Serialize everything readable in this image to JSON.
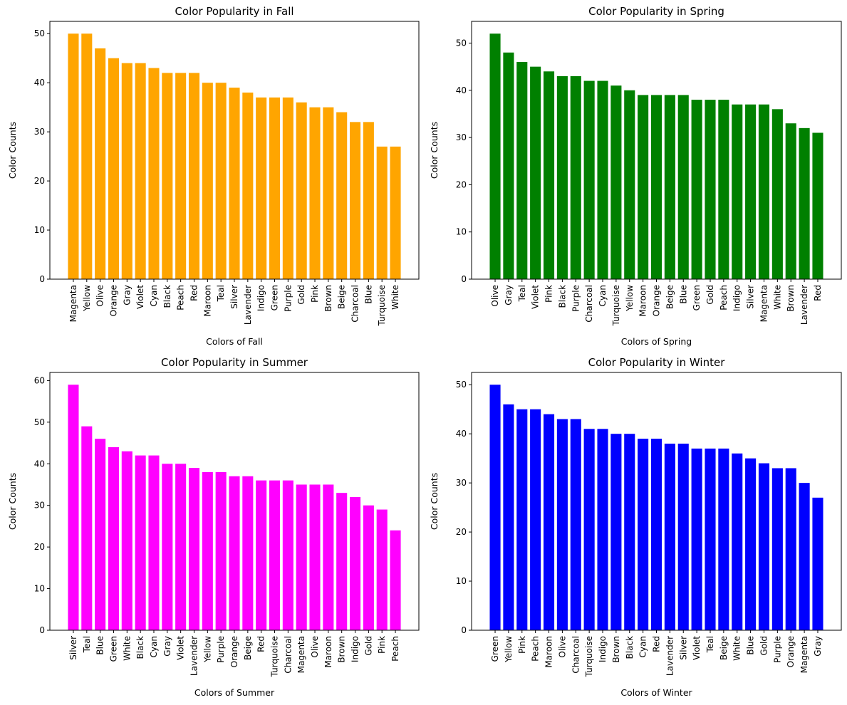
{
  "chart_data": [
    {
      "type": "bar",
      "title": "Color Popularity in Fall",
      "xlabel": "Colors of Fall",
      "ylabel": "Color Counts",
      "color": "#FFA500",
      "ylim": [
        0,
        52.5
      ],
      "yticks": [
        0,
        10,
        20,
        30,
        40,
        50
      ],
      "categories": [
        "Magenta",
        "Yellow",
        "Olive",
        "Orange",
        "Gray",
        "Violet",
        "Cyan",
        "Black",
        "Peach",
        "Red",
        "Maroon",
        "Teal",
        "Silver",
        "Lavender",
        "Indigo",
        "Green",
        "Purple",
        "Gold",
        "Pink",
        "Brown",
        "Beige",
        "Charcoal",
        "Blue",
        "Turquoise",
        "White"
      ],
      "values": [
        50,
        50,
        47,
        45,
        44,
        44,
        43,
        42,
        42,
        42,
        40,
        40,
        39,
        38,
        37,
        37,
        37,
        36,
        35,
        35,
        34,
        32,
        32,
        27,
        27
      ]
    },
    {
      "type": "bar",
      "title": "Color Popularity in Spring",
      "xlabel": "Colors of Spring",
      "ylabel": "Color Counts",
      "color": "#008000",
      "ylim": [
        0,
        54.6
      ],
      "yticks": [
        0,
        10,
        20,
        30,
        40,
        50
      ],
      "categories": [
        "Olive",
        "Gray",
        "Teal",
        "Violet",
        "Pink",
        "Black",
        "Purple",
        "Charcoal",
        "Cyan",
        "Turquoise",
        "Yellow",
        "Maroon",
        "Orange",
        "Beige",
        "Blue",
        "Green",
        "Gold",
        "Peach",
        "Indigo",
        "Silver",
        "Magenta",
        "White",
        "Brown",
        "Lavender",
        "Red"
      ],
      "values": [
        52,
        48,
        46,
        45,
        44,
        43,
        43,
        42,
        42,
        41,
        40,
        39,
        39,
        39,
        39,
        38,
        38,
        38,
        37,
        37,
        37,
        36,
        33,
        32,
        31
      ]
    },
    {
      "type": "bar",
      "title": "Color Popularity in Summer",
      "xlabel": "Colors of Summer",
      "ylabel": "Color Counts",
      "color": "#FF00FF",
      "ylim": [
        0,
        61.95
      ],
      "yticks": [
        0,
        10,
        20,
        30,
        40,
        50,
        60
      ],
      "categories": [
        "Silver",
        "Teal",
        "Blue",
        "Green",
        "White",
        "Black",
        "Cyan",
        "Gray",
        "Violet",
        "Lavender",
        "Yellow",
        "Purple",
        "Orange",
        "Beige",
        "Red",
        "Turquoise",
        "Charcoal",
        "Magenta",
        "Olive",
        "Maroon",
        "Brown",
        "Indigo",
        "Gold",
        "Pink",
        "Peach"
      ],
      "values": [
        59,
        49,
        46,
        44,
        43,
        42,
        42,
        40,
        40,
        39,
        38,
        38,
        37,
        37,
        36,
        36,
        36,
        35,
        35,
        35,
        33,
        32,
        30,
        29,
        24
      ]
    },
    {
      "type": "bar",
      "title": "Color Popularity in Winter",
      "xlabel": "Colors of Winter",
      "ylabel": "Color Counts",
      "color": "#0000FF",
      "ylim": [
        0,
        52.5
      ],
      "yticks": [
        0,
        10,
        20,
        30,
        40,
        50
      ],
      "categories": [
        "Green",
        "Yellow",
        "Pink",
        "Peach",
        "Maroon",
        "Olive",
        "Charcoal",
        "Turquoise",
        "Indigo",
        "Brown",
        "Black",
        "Cyan",
        "Red",
        "Lavender",
        "Silver",
        "Violet",
        "Teal",
        "Beige",
        "White",
        "Blue",
        "Gold",
        "Purple",
        "Orange",
        "Magenta",
        "Gray"
      ],
      "values": [
        50,
        46,
        45,
        45,
        44,
        43,
        43,
        41,
        41,
        40,
        40,
        39,
        39,
        38,
        38,
        37,
        37,
        37,
        36,
        35,
        34,
        33,
        33,
        30,
        27
      ]
    }
  ]
}
